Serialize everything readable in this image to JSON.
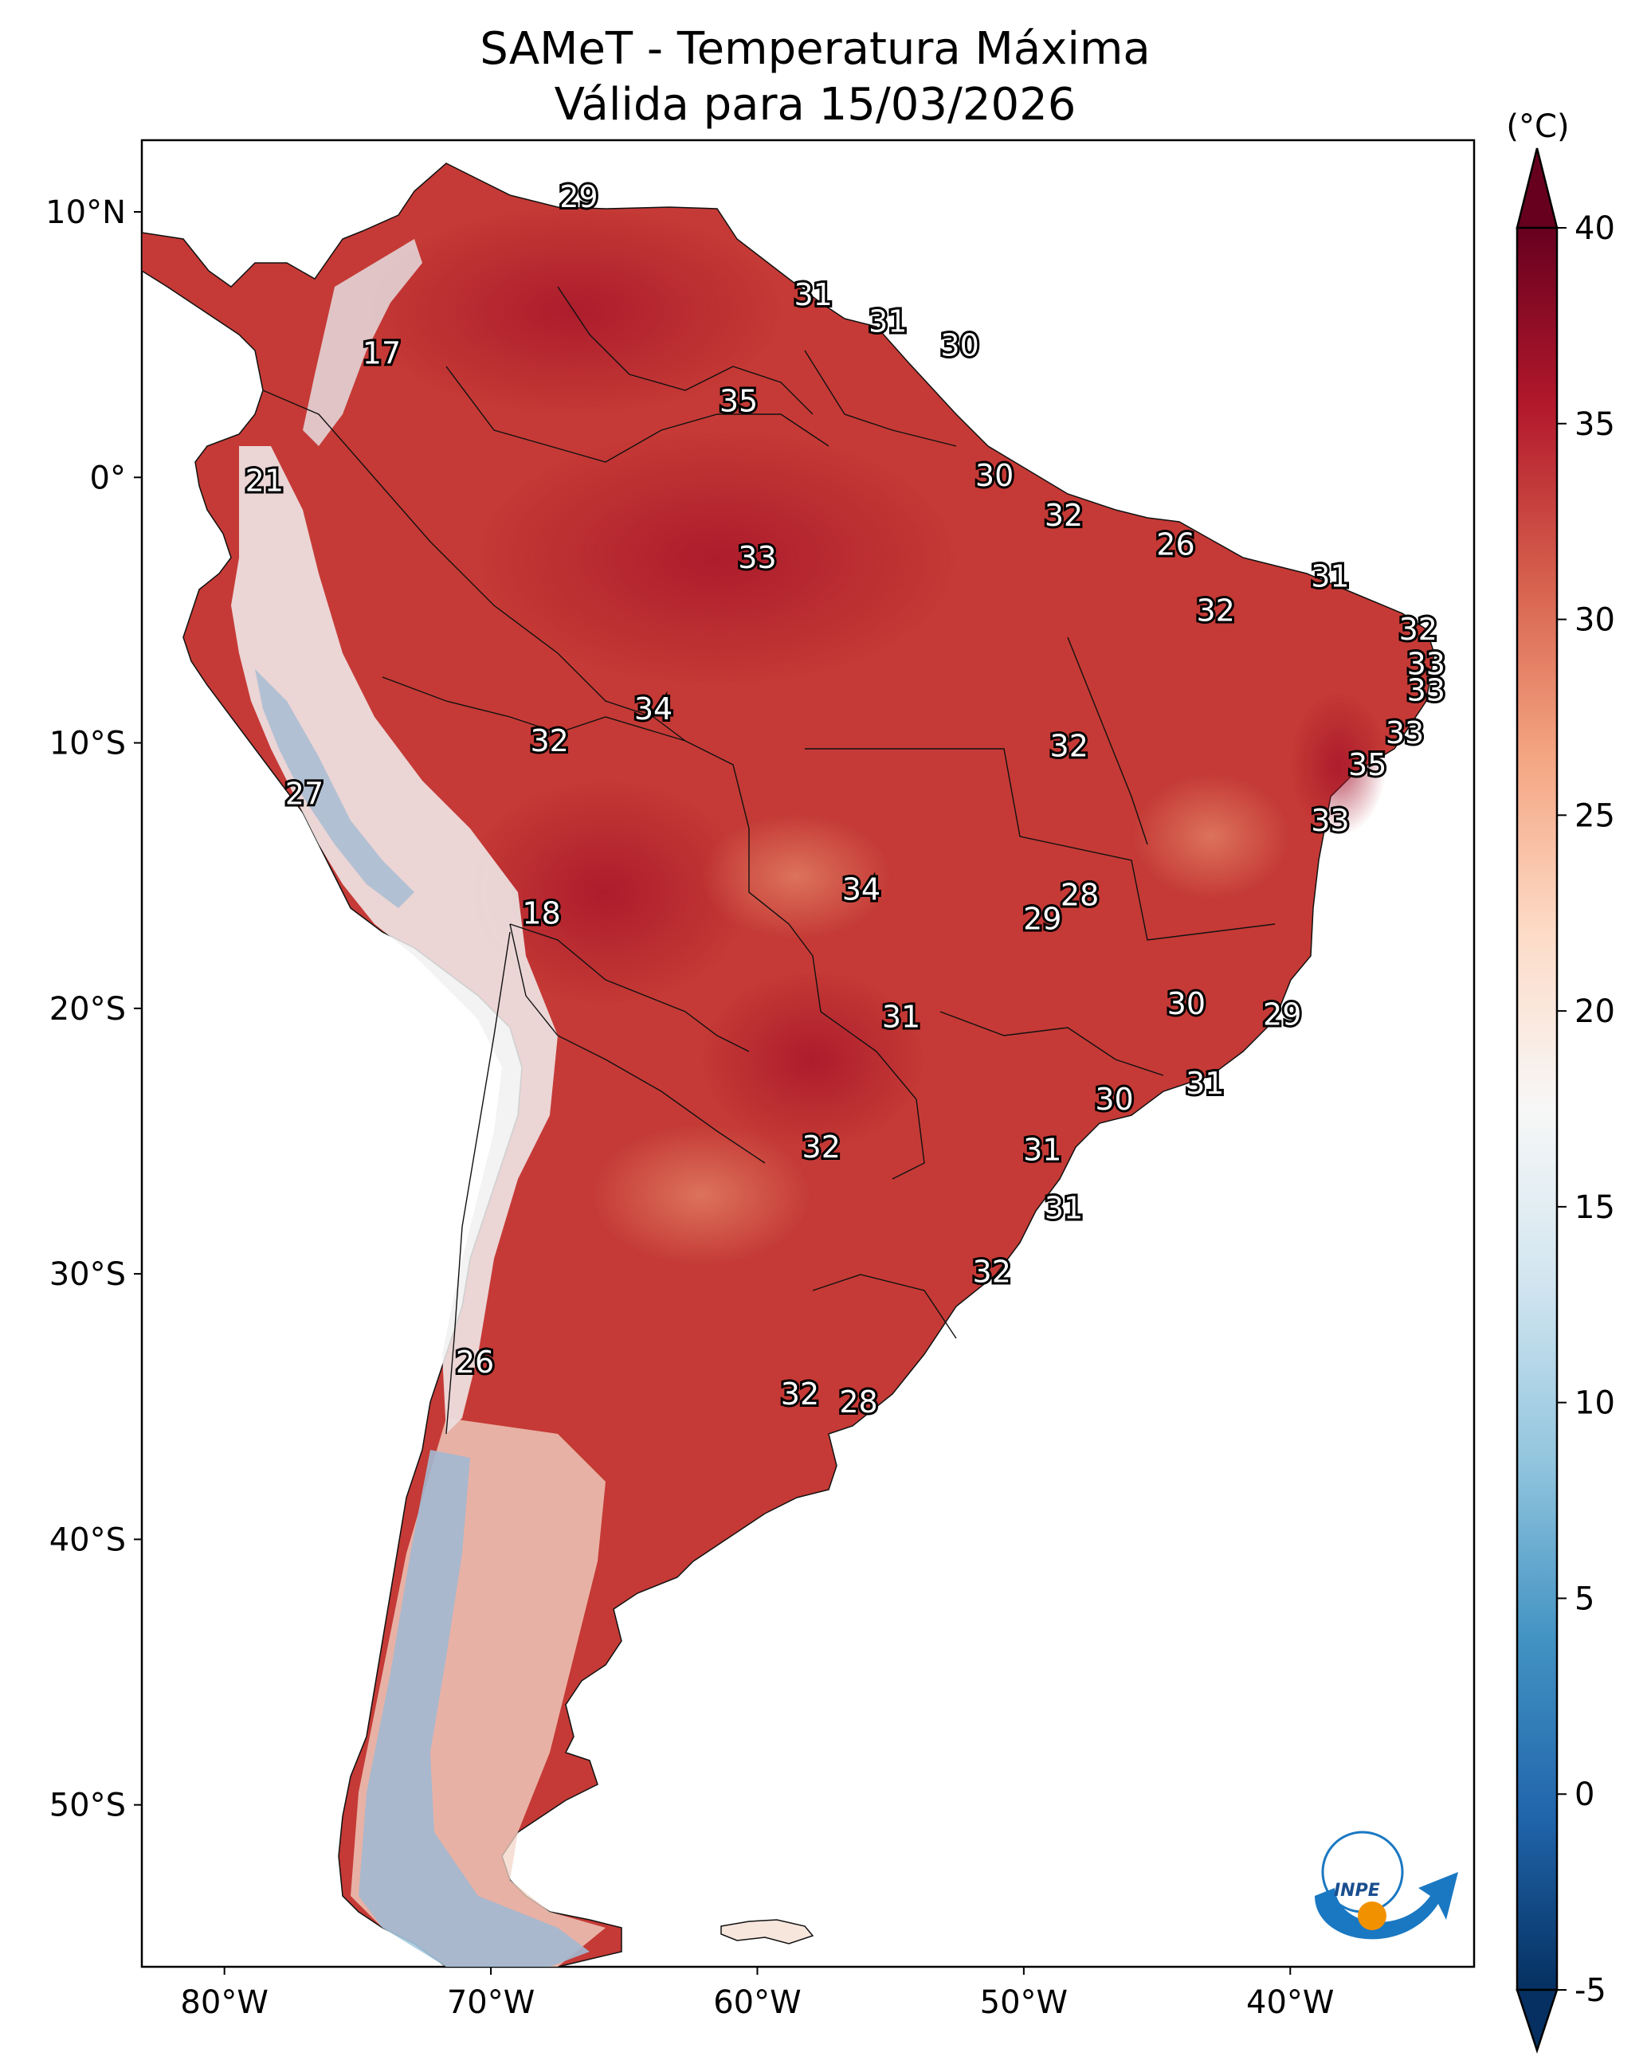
{
  "title": {
    "line1": "SAMeT - Temperatura Máxima",
    "line2": "Válida para 15/03/2026"
  },
  "colorbar": {
    "unit": "(°C)",
    "ticks": [
      "40",
      "35",
      "30",
      "25",
      "20",
      "15",
      "10",
      "5",
      "0",
      "-5"
    ],
    "range": [
      -5,
      40
    ],
    "colors": [
      "#053061",
      "#2166ac",
      "#4393c3",
      "#92c5de",
      "#d1e5f0",
      "#f7f7f7",
      "#fddbc7",
      "#f4a582",
      "#d6604d",
      "#b2182b",
      "#67001f"
    ]
  },
  "axes": {
    "lon_ticks": [
      "80°W",
      "70°W",
      "60°W",
      "50°W",
      "40°W"
    ],
    "lat_ticks": [
      "10°N",
      "0°",
      "10°S",
      "20°S",
      "30°S",
      "40°S",
      "50°S"
    ]
  },
  "logo": {
    "text": "INPE"
  },
  "city_labels": [
    {
      "lon": -66.7,
      "lat": 10.5,
      "temp": "29"
    },
    {
      "lon": -57.9,
      "lat": 6.8,
      "temp": "31"
    },
    {
      "lon": -55.1,
      "lat": 5.8,
      "temp": "31"
    },
    {
      "lon": -52.4,
      "lat": 4.9,
      "temp": "30"
    },
    {
      "lon": -74.1,
      "lat": 4.6,
      "temp": "17"
    },
    {
      "lon": -60.7,
      "lat": 2.8,
      "temp": "35"
    },
    {
      "lon": -78.5,
      "lat": -0.2,
      "temp": "21"
    },
    {
      "lon": -51.1,
      "lat": 0.0,
      "temp": "30"
    },
    {
      "lon": -48.5,
      "lat": -1.5,
      "temp": "32"
    },
    {
      "lon": -44.3,
      "lat": -2.6,
      "temp": "26"
    },
    {
      "lon": -38.5,
      "lat": -3.8,
      "temp": "31"
    },
    {
      "lon": -60.0,
      "lat": -3.1,
      "temp": "33"
    },
    {
      "lon": -42.8,
      "lat": -5.1,
      "temp": "32"
    },
    {
      "lon": -35.2,
      "lat": -5.8,
      "temp": "32"
    },
    {
      "lon": -34.9,
      "lat": -7.1,
      "temp": "33"
    },
    {
      "lon": -34.9,
      "lat": -8.1,
      "temp": "33"
    },
    {
      "lon": -63.9,
      "lat": -8.8,
      "temp": "34"
    },
    {
      "lon": -67.8,
      "lat": -10.0,
      "temp": "32"
    },
    {
      "lon": -48.3,
      "lat": -10.2,
      "temp": "32"
    },
    {
      "lon": -35.7,
      "lat": -9.7,
      "temp": "33"
    },
    {
      "lon": -37.1,
      "lat": -10.9,
      "temp": "35"
    },
    {
      "lon": -77.0,
      "lat": -12.0,
      "temp": "27"
    },
    {
      "lon": -38.5,
      "lat": -13.0,
      "temp": "33"
    },
    {
      "lon": -56.1,
      "lat": -15.6,
      "temp": "34"
    },
    {
      "lon": -47.9,
      "lat": -15.8,
      "temp": "28"
    },
    {
      "lon": -49.3,
      "lat": -16.7,
      "temp": "29"
    },
    {
      "lon": -68.1,
      "lat": -16.5,
      "temp": "18"
    },
    {
      "lon": -43.9,
      "lat": -19.9,
      "temp": "30"
    },
    {
      "lon": -40.3,
      "lat": -20.3,
      "temp": "29"
    },
    {
      "lon": -54.6,
      "lat": -20.4,
      "temp": "31"
    },
    {
      "lon": -43.2,
      "lat": -22.9,
      "temp": "31"
    },
    {
      "lon": -46.6,
      "lat": -23.5,
      "temp": "30"
    },
    {
      "lon": -57.6,
      "lat": -25.3,
      "temp": "32"
    },
    {
      "lon": -49.3,
      "lat": -25.4,
      "temp": "31"
    },
    {
      "lon": -48.5,
      "lat": -27.6,
      "temp": "31"
    },
    {
      "lon": -51.2,
      "lat": -30.0,
      "temp": "32"
    },
    {
      "lon": -70.6,
      "lat": -33.4,
      "temp": "26"
    },
    {
      "lon": -58.4,
      "lat": -34.6,
      "temp": "32"
    },
    {
      "lon": -56.2,
      "lat": -34.9,
      "temp": "28"
    }
  ]
}
